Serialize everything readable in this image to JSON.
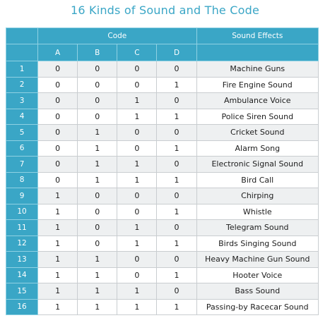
{
  "title": "16 Kinds of Sound and The Code",
  "header": {
    "code_label": "Code",
    "effects_label": "Sound Effects",
    "columns": [
      "A",
      "B",
      "C",
      "D"
    ]
  },
  "rows": [
    {
      "num": "1",
      "a": "0",
      "b": "0",
      "c": "0",
      "d": "0",
      "effect": "Machine Guns"
    },
    {
      "num": "2",
      "a": "0",
      "b": "0",
      "c": "0",
      "d": "1",
      "effect": "Fire Engine Sound"
    },
    {
      "num": "3",
      "a": "0",
      "b": "0",
      "c": "1",
      "d": "0",
      "effect": "Ambulance Voice"
    },
    {
      "num": "4",
      "a": "0",
      "b": "0",
      "c": "1",
      "d": "1",
      "effect": "Police Siren Sound"
    },
    {
      "num": "5",
      "a": "0",
      "b": "1",
      "c": "0",
      "d": "0",
      "effect": "Cricket Sound"
    },
    {
      "num": "6",
      "a": "0",
      "b": "1",
      "c": "0",
      "d": "1",
      "effect": "Alarm Song"
    },
    {
      "num": "7",
      "a": "0",
      "b": "1",
      "c": "1",
      "d": "0",
      "effect": "Electronic Signal Sound"
    },
    {
      "num": "8",
      "a": "0",
      "b": "1",
      "c": "1",
      "d": "1",
      "effect": "Bird Call"
    },
    {
      "num": "9",
      "a": "1",
      "b": "0",
      "c": "0",
      "d": "0",
      "effect": "Chirping"
    },
    {
      "num": "10",
      "a": "1",
      "b": "0",
      "c": "0",
      "d": "1",
      "effect": "Whistle"
    },
    {
      "num": "11",
      "a": "1",
      "b": "0",
      "c": "1",
      "d": "0",
      "effect": "Telegram Sound"
    },
    {
      "num": "12",
      "a": "1",
      "b": "0",
      "c": "1",
      "d": "1",
      "effect": "Birds Singing Sound"
    },
    {
      "num": "13",
      "a": "1",
      "b": "1",
      "c": "0",
      "d": "0",
      "effect": "Heavy Machine Gun Sound"
    },
    {
      "num": "14",
      "a": "1",
      "b": "1",
      "c": "0",
      "d": "1",
      "effect": "Hooter Voice"
    },
    {
      "num": "15",
      "a": "1",
      "b": "1",
      "c": "1",
      "d": "0",
      "effect": "Bass Sound"
    },
    {
      "num": "16",
      "a": "1",
      "b": "1",
      "c": "1",
      "d": "1",
      "effect": "Passing-by Racecar Sound"
    }
  ],
  "colors": {
    "accent": "#3aa6c6",
    "stripe": "#eef0f1",
    "grid": "#c9cdd0"
  }
}
